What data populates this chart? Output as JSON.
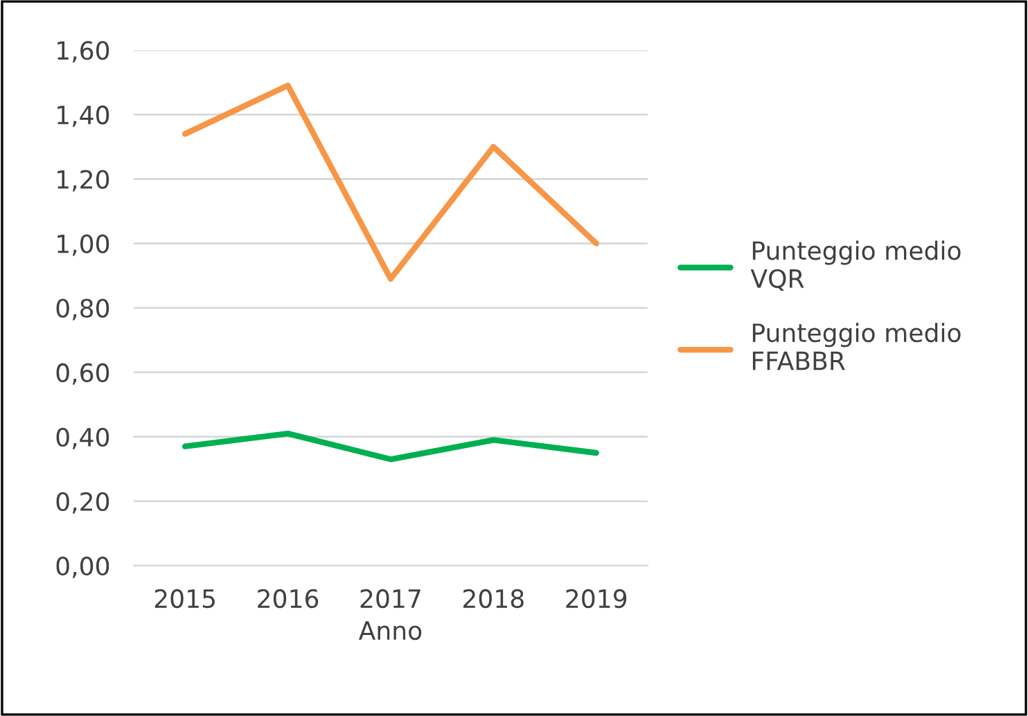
{
  "chart_data": {
    "type": "line",
    "xlabel": "Anno",
    "categories": [
      "2015",
      "2016",
      "2017",
      "2018",
      "2019"
    ],
    "series": [
      {
        "name": "Punteggio medio VQR",
        "color": "#00b050",
        "values": [
          0.37,
          0.41,
          0.33,
          0.39,
          0.35
        ]
      },
      {
        "name": "Punteggio medio FFABBR",
        "color": "#f79646",
        "values": [
          1.34,
          1.49,
          0.89,
          1.3,
          1.0
        ]
      }
    ],
    "ylim": [
      0,
      1.6
    ],
    "yticks": [
      {
        "value": 0,
        "label": "0,00"
      },
      {
        "value": 0.2,
        "label": "0,20"
      },
      {
        "value": 0.4,
        "label": "0,40"
      },
      {
        "value": 0.6,
        "label": "0,60"
      },
      {
        "value": 0.8,
        "label": "0,80"
      },
      {
        "value": 1.0,
        "label": "1,00"
      },
      {
        "value": 1.2,
        "label": "1,20"
      },
      {
        "value": 1.4,
        "label": "1,40"
      },
      {
        "value": 1.6,
        "label": "1,60"
      }
    ],
    "grid": "y",
    "legend": "right",
    "marker": "none",
    "line_style": "solid"
  }
}
